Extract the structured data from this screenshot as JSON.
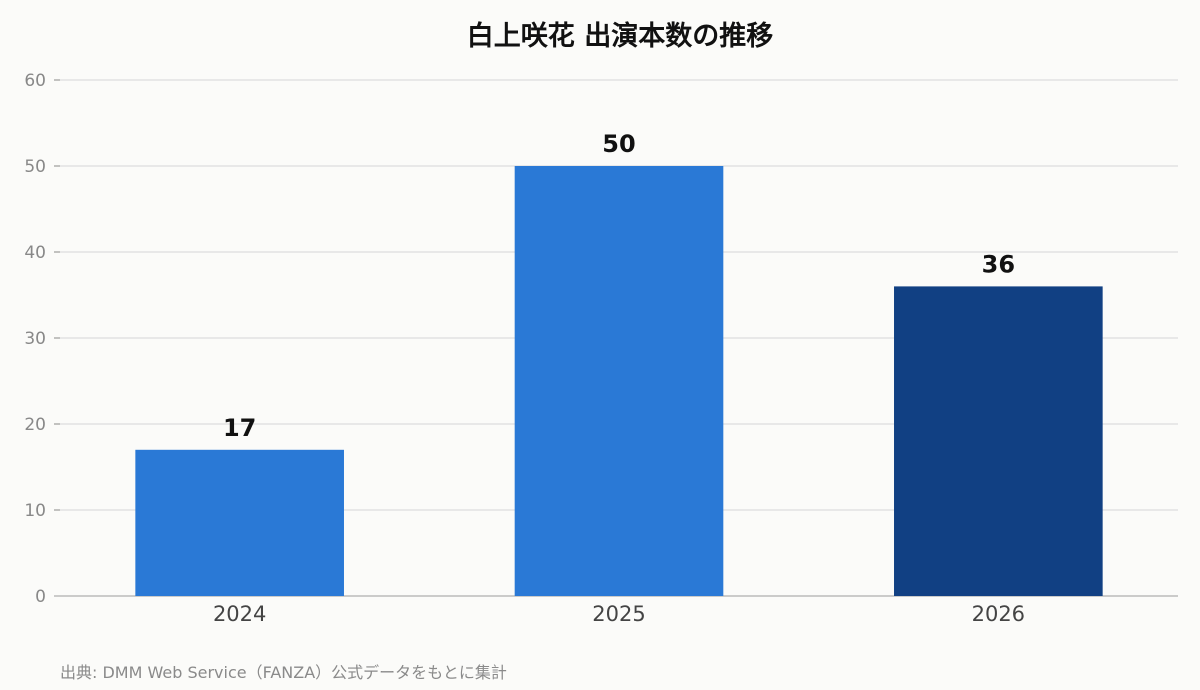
{
  "chart_data": {
    "type": "bar",
    "title": "白上咲花 出演本数の推移",
    "categories": [
      "2024",
      "2025",
      "2026"
    ],
    "values": [
      17,
      50,
      36
    ],
    "data_labels": [
      "17",
      "50",
      "36"
    ],
    "bar_colors": [
      "#2a79d6",
      "#2a79d6",
      "#114083"
    ],
    "ylim": [
      0,
      60
    ],
    "yticks": [
      "0",
      "10",
      "20",
      "30",
      "40",
      "50",
      "60"
    ],
    "xlabel": "",
    "ylabel": "",
    "grid": true
  },
  "source": "出典: DMM Web Service（FANZA）公式データをもとに集計"
}
